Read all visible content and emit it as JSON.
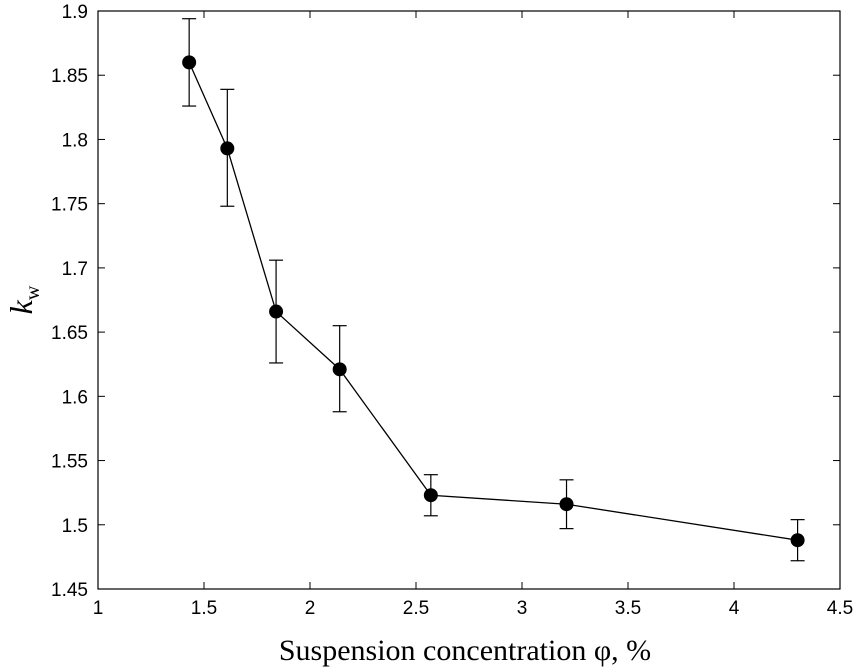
{
  "chart_data": {
    "type": "scatter",
    "title": "",
    "xlabel": "Suspension concentration φ, %",
    "ylabel": {
      "main": "k",
      "sub": "w"
    },
    "xlim": [
      1,
      4.5
    ],
    "ylim": [
      1.45,
      1.9
    ],
    "x_ticks": [
      1,
      1.5,
      2,
      2.5,
      3,
      3.5,
      4,
      4.5
    ],
    "x_tick_labels": [
      "1",
      "1.5",
      "2",
      "2.5",
      "3",
      "3.5",
      "4",
      "4.5"
    ],
    "y_ticks": [
      1.45,
      1.5,
      1.55,
      1.6,
      1.65,
      1.7,
      1.75,
      1.8,
      1.85,
      1.9
    ],
    "y_tick_labels": [
      "1.45",
      "1.5",
      "1.55",
      "1.6",
      "1.65",
      "1.7",
      "1.75",
      "1.8",
      "1.85",
      "1.9"
    ],
    "grid": false,
    "line_connected": true,
    "marker": "filled-circle",
    "color": "#000000",
    "series": [
      {
        "points": [
          {
            "x": 1.43,
            "y": 1.86,
            "err_low": 1.826,
            "err_high": 1.894
          },
          {
            "x": 1.61,
            "y": 1.793,
            "err_low": 1.748,
            "err_high": 1.839
          },
          {
            "x": 1.84,
            "y": 1.666,
            "err_low": 1.626,
            "err_high": 1.706
          },
          {
            "x": 2.14,
            "y": 1.621,
            "err_low": 1.588,
            "err_high": 1.655
          },
          {
            "x": 2.57,
            "y": 1.523,
            "err_low": 1.507,
            "err_high": 1.539
          },
          {
            "x": 3.21,
            "y": 1.516,
            "err_low": 1.497,
            "err_high": 1.535
          },
          {
            "x": 4.3,
            "y": 1.488,
            "err_low": 1.472,
            "err_high": 1.504
          }
        ]
      }
    ]
  }
}
